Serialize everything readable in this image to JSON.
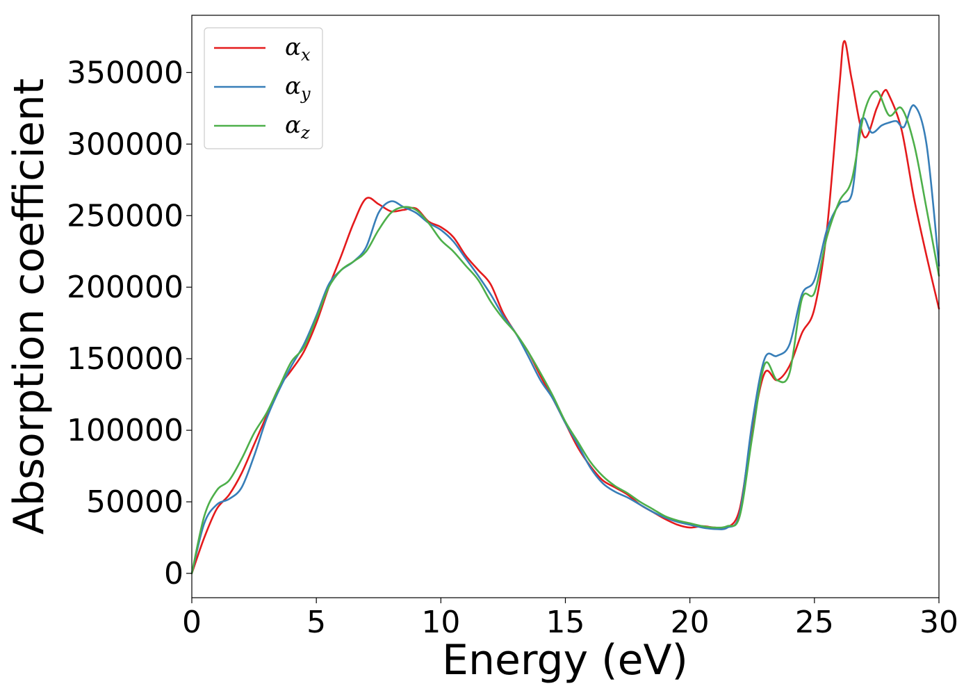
{
  "chart_data": {
    "type": "line",
    "title": "",
    "xlabel": "Energy (eV)",
    "ylabel": "Absorption coefficient",
    "xlim": [
      0,
      30
    ],
    "ylim": [
      -17000,
      390000
    ],
    "xticks": [
      0,
      5,
      10,
      15,
      20,
      25,
      30
    ],
    "xtick_labels": [
      "0",
      "5",
      "10",
      "15",
      "20",
      "25",
      "30"
    ],
    "yticks": [
      0,
      50000,
      100000,
      150000,
      200000,
      250000,
      300000,
      350000
    ],
    "ytick_labels": [
      "0",
      "50000",
      "100000",
      "150000",
      "200000",
      "250000",
      "300000",
      "350000"
    ],
    "grid": false,
    "legend_position": "upper-left",
    "series": [
      {
        "name": "αx",
        "legend_base": "α",
        "legend_sub": "x",
        "color": "#e41a1c",
        "x": [
          0,
          0.5,
          1,
          1.5,
          2,
          2.5,
          3,
          3.5,
          4,
          4.5,
          5,
          5.5,
          6,
          6.5,
          7,
          7.5,
          8,
          8.5,
          9,
          9.5,
          10,
          10.5,
          11,
          11.5,
          12,
          12.5,
          13,
          13.5,
          14,
          14.5,
          15,
          15.5,
          16,
          16.5,
          17,
          17.5,
          18,
          18.5,
          19,
          19.5,
          20,
          20.5,
          21,
          21.5,
          22,
          22.5,
          23,
          23.5,
          24,
          24.5,
          25,
          25.5,
          26,
          26.2,
          26.5,
          27,
          27.5,
          27.8,
          28,
          28.5,
          29,
          29.5,
          30
        ],
        "y": [
          0,
          25000,
          45000,
          55000,
          70000,
          90000,
          110000,
          130000,
          142000,
          155000,
          175000,
          200000,
          222000,
          245000,
          262000,
          258000,
          253000,
          254000,
          255000,
          246000,
          242000,
          235000,
          222000,
          212000,
          202000,
          182000,
          168000,
          155000,
          138000,
          122000,
          105000,
          88000,
          75000,
          65000,
          60000,
          55000,
          48000,
          43000,
          38000,
          34000,
          32000,
          33000,
          32000,
          32000,
          45000,
          100000,
          140000,
          135000,
          145000,
          168000,
          185000,
          240000,
          340000,
          372000,
          345000,
          305000,
          325000,
          337000,
          334000,
          310000,
          262000,
          222000,
          185000
        ]
      },
      {
        "name": "αy",
        "legend_base": "α",
        "legend_sub": "y",
        "color": "#377eb8",
        "x": [
          0,
          0.5,
          1,
          1.5,
          2,
          2.5,
          3,
          3.5,
          4,
          4.5,
          5,
          5.5,
          6,
          6.5,
          7,
          7.5,
          8,
          8.5,
          9,
          9.5,
          10,
          10.5,
          11,
          11.5,
          12,
          12.5,
          13,
          13.5,
          14,
          14.5,
          15,
          15.5,
          16,
          16.5,
          17,
          17.5,
          18,
          18.5,
          19,
          19.5,
          20,
          20.5,
          21,
          21.5,
          22,
          22.5,
          23,
          23.5,
          24,
          24.5,
          25,
          25.5,
          26,
          26.5,
          26.8,
          27,
          27.3,
          27.7,
          28,
          28.3,
          28.6,
          29,
          29.5,
          30
        ],
        "y": [
          0,
          35000,
          48000,
          52000,
          60000,
          82000,
          108000,
          128000,
          145000,
          160000,
          180000,
          202000,
          212000,
          218000,
          228000,
          252000,
          260000,
          256000,
          252000,
          245000,
          240000,
          232000,
          220000,
          208000,
          195000,
          180000,
          168000,
          152000,
          135000,
          122000,
          105000,
          90000,
          74000,
          63000,
          57000,
          53000,
          48000,
          43000,
          39000,
          36000,
          34000,
          32000,
          31000,
          32000,
          42000,
          105000,
          150000,
          152000,
          160000,
          195000,
          205000,
          240000,
          258000,
          265000,
          310000,
          318000,
          308000,
          313000,
          315000,
          316000,
          312000,
          327000,
          300000,
          215000
        ]
      },
      {
        "name": "αz",
        "legend_base": "α",
        "legend_sub": "z",
        "color": "#4daf4a",
        "x": [
          0,
          0.5,
          1,
          1.5,
          2,
          2.5,
          3,
          3.5,
          4,
          4.5,
          5,
          5.5,
          6,
          6.5,
          7,
          7.5,
          8,
          8.5,
          9,
          9.5,
          10,
          10.5,
          11,
          11.5,
          12,
          12.5,
          13,
          13.5,
          14,
          14.5,
          15,
          15.5,
          16,
          16.5,
          17,
          17.5,
          18,
          18.5,
          19,
          19.5,
          20,
          20.5,
          21,
          21.5,
          22,
          22.5,
          23,
          23.5,
          24,
          24.5,
          25,
          25.5,
          26,
          26.5,
          27,
          27.5,
          28,
          28.5,
          29,
          29.5,
          30
        ],
        "y": [
          0,
          40000,
          58000,
          65000,
          80000,
          98000,
          112000,
          130000,
          148000,
          158000,
          178000,
          200000,
          212000,
          218000,
          225000,
          240000,
          252000,
          256000,
          254000,
          245000,
          233000,
          225000,
          215000,
          205000,
          190000,
          178000,
          168000,
          155000,
          140000,
          124000,
          106000,
          92000,
          78000,
          68000,
          61000,
          56000,
          50000,
          45000,
          40000,
          37000,
          35000,
          33000,
          32000,
          33000,
          40000,
          95000,
          146000,
          135000,
          140000,
          192000,
          196000,
          235000,
          260000,
          275000,
          322000,
          337000,
          320000,
          325000,
          300000,
          255000,
          208000
        ]
      }
    ]
  }
}
